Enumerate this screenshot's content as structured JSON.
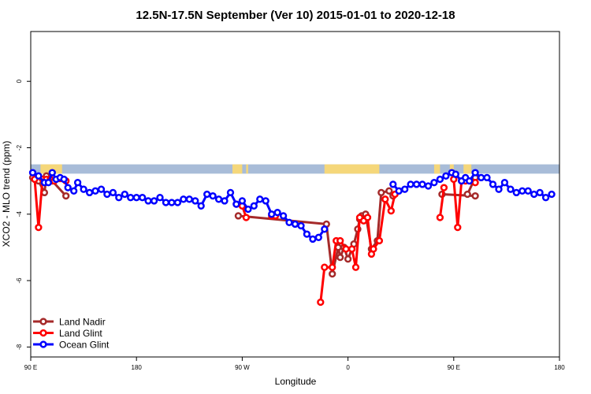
{
  "chart_data": {
    "type": "line",
    "title": "12.5N-17.5N September (Ver 10)   2015-01-01 to 2020-12-18",
    "xlabel": "Longitude",
    "ylabel": "XCO2 - MLO trend (ppm)",
    "xlim": [
      -90,
      180
    ],
    "ylim": [
      -8.3,
      1.5
    ],
    "x_ticks": [
      {
        "value": -90,
        "label": "90 E"
      },
      {
        "value": -36,
        "label": "180"
      },
      {
        "value": 18,
        "label": "90 W"
      },
      {
        "value": 72,
        "label": "0"
      },
      {
        "value": 126,
        "label": "90 E"
      },
      {
        "value": 180,
        "label": "180"
      }
    ],
    "y_ticks": [
      {
        "value": 0,
        "label": "0"
      },
      {
        "value": -2,
        "label": "-2"
      },
      {
        "value": -4,
        "label": "-4"
      },
      {
        "value": -6,
        "label": "-6"
      },
      {
        "value": -8,
        "label": "-8"
      }
    ],
    "grid": false,
    "legend_position": "bottom-left",
    "land_mask_band": {
      "y_top": -2.5,
      "y_bottom": -2.78,
      "ocean_color": "#a8bcd8",
      "land_color": "#f5d77a"
    },
    "land_spans_x": [
      [
        -85,
        -74
      ],
      [
        13,
        18
      ],
      [
        20,
        21
      ],
      [
        60,
        88
      ],
      [
        116,
        119
      ],
      [
        124,
        126
      ],
      [
        131,
        135
      ]
    ],
    "series": [
      {
        "name": "Land Nadir",
        "color": "#a52a2a",
        "segments": [
          [
            [
              -89,
              -2.9
            ],
            [
              -86,
              -3.0
            ],
            [
              -83,
              -3.35
            ],
            [
              -82,
              -2.85
            ],
            [
              -79,
              -3.0
            ],
            [
              -72,
              -3.45
            ]
          ],
          [
            [
              16,
              -4.05
            ],
            [
              61,
              -4.3
            ],
            [
              64,
              -5.8
            ],
            [
              67,
              -5.0
            ],
            [
              68,
              -5.3
            ],
            [
              70,
              -5.0
            ],
            [
              72,
              -5.35
            ],
            [
              75,
              -4.9
            ],
            [
              77,
              -4.45
            ],
            [
              78,
              -4.15
            ],
            [
              79,
              -4.05
            ],
            [
              81,
              -4.0
            ],
            [
              84,
              -5.05
            ],
            [
              87,
              -4.8
            ],
            [
              89,
              -3.35
            ],
            [
              93,
              -3.3
            ],
            [
              95,
              -3.45
            ]
          ],
          [
            [
              133,
              -3.4
            ],
            [
              137,
              -2.9
            ]
          ],
          [
            [
              120,
              -3.4
            ],
            [
              137,
              -3.45
            ]
          ]
        ]
      },
      {
        "name": "Land Glint",
        "color": "#ff0000",
        "segments": [
          [
            [
              -88,
              -2.95
            ],
            [
              -86,
              -4.4
            ],
            [
              -84,
              -2.95
            ],
            [
              -82,
              -2.95
            ],
            [
              -80,
              -2.95
            ],
            [
              -78,
              -3.0
            ],
            [
              -72,
              -3.0
            ]
          ],
          [
            [
              15,
              -3.7
            ],
            [
              18,
              -3.75
            ],
            [
              20,
              -4.1
            ]
          ],
          [
            [
              33,
              -4.05
            ],
            [
              35,
              -4.05
            ]
          ],
          [
            [
              58,
              -6.65
            ],
            [
              60,
              -5.6
            ],
            [
              64,
              -5.6
            ],
            [
              66,
              -4.8
            ],
            [
              68,
              -4.8
            ],
            [
              71,
              -5.05
            ],
            [
              74,
              -5.05
            ],
            [
              76,
              -5.6
            ],
            [
              78,
              -4.1
            ],
            [
              80,
              -4.2
            ],
            [
              82,
              -4.1
            ],
            [
              84,
              -5.2
            ],
            [
              85,
              -5.05
            ],
            [
              88,
              -4.8
            ],
            [
              91,
              -3.55
            ],
            [
              94,
              -3.9
            ],
            [
              96,
              -3.4
            ]
          ],
          [
            [
              119,
              -4.1
            ],
            [
              121,
              -3.2
            ]
          ],
          [
            [
              126,
              -2.95
            ],
            [
              128,
              -4.4
            ],
            [
              130,
              -3.0
            ],
            [
              132,
              -3.0
            ],
            [
              137,
              -3.05
            ]
          ]
        ]
      },
      {
        "name": "Ocean Glint",
        "color": "#0000ff",
        "segments": [
          [
            [
              -89,
              -2.75
            ],
            [
              -86,
              -2.85
            ],
            [
              -83,
              -3.05
            ],
            [
              -81,
              -3.05
            ],
            [
              -79,
              -2.75
            ],
            [
              -77,
              -2.95
            ],
            [
              -75,
              -2.9
            ],
            [
              -73,
              -2.95
            ],
            [
              -71,
              -3.2
            ],
            [
              -68,
              -3.3
            ],
            [
              -66,
              -3.05
            ],
            [
              -63,
              -3.25
            ],
            [
              -60,
              -3.35
            ],
            [
              -57,
              -3.3
            ],
            [
              -54,
              -3.25
            ],
            [
              -51,
              -3.4
            ],
            [
              -48,
              -3.35
            ],
            [
              -45,
              -3.5
            ],
            [
              -42,
              -3.4
            ],
            [
              -39,
              -3.5
            ],
            [
              -36,
              -3.5
            ],
            [
              -33,
              -3.5
            ],
            [
              -30,
              -3.6
            ],
            [
              -27,
              -3.6
            ],
            [
              -24,
              -3.5
            ],
            [
              -21,
              -3.65
            ],
            [
              -18,
              -3.65
            ],
            [
              -15,
              -3.65
            ],
            [
              -12,
              -3.55
            ],
            [
              -9,
              -3.55
            ],
            [
              -6,
              -3.6
            ],
            [
              -3,
              -3.75
            ],
            [
              0,
              -3.4
            ],
            [
              3,
              -3.45
            ],
            [
              6,
              -3.55
            ],
            [
              9,
              -3.6
            ],
            [
              12,
              -3.35
            ],
            [
              15,
              -3.7
            ],
            [
              18,
              -3.6
            ],
            [
              21,
              -3.85
            ],
            [
              24,
              -3.75
            ],
            [
              27,
              -3.55
            ],
            [
              30,
              -3.6
            ],
            [
              33,
              -4.0
            ],
            [
              36,
              -3.95
            ],
            [
              39,
              -4.05
            ],
            [
              42,
              -4.25
            ],
            [
              45,
              -4.3
            ],
            [
              48,
              -4.35
            ],
            [
              51,
              -4.6
            ],
            [
              54,
              -4.75
            ],
            [
              57,
              -4.7
            ],
            [
              60,
              -4.45
            ]
          ],
          [
            [
              95,
              -3.1
            ],
            [
              98,
              -3.3
            ],
            [
              101,
              -3.25
            ],
            [
              104,
              -3.1
            ],
            [
              107,
              -3.1
            ],
            [
              110,
              -3.1
            ],
            [
              113,
              -3.15
            ],
            [
              116,
              -3.05
            ],
            [
              119,
              -2.95
            ],
            [
              122,
              -2.85
            ],
            [
              125,
              -2.75
            ],
            [
              127,
              -2.8
            ],
            [
              130,
              -3.0
            ],
            [
              132,
              -2.9
            ],
            [
              134,
              -3.0
            ],
            [
              137,
              -2.75
            ],
            [
              140,
              -2.9
            ],
            [
              143,
              -2.9
            ],
            [
              146,
              -3.1
            ],
            [
              149,
              -3.25
            ],
            [
              152,
              -3.05
            ],
            [
              155,
              -3.25
            ],
            [
              158,
              -3.35
            ],
            [
              161,
              -3.3
            ],
            [
              164,
              -3.3
            ],
            [
              167,
              -3.4
            ],
            [
              170,
              -3.35
            ],
            [
              173,
              -3.5
            ],
            [
              176,
              -3.4
            ]
          ]
        ]
      }
    ]
  }
}
